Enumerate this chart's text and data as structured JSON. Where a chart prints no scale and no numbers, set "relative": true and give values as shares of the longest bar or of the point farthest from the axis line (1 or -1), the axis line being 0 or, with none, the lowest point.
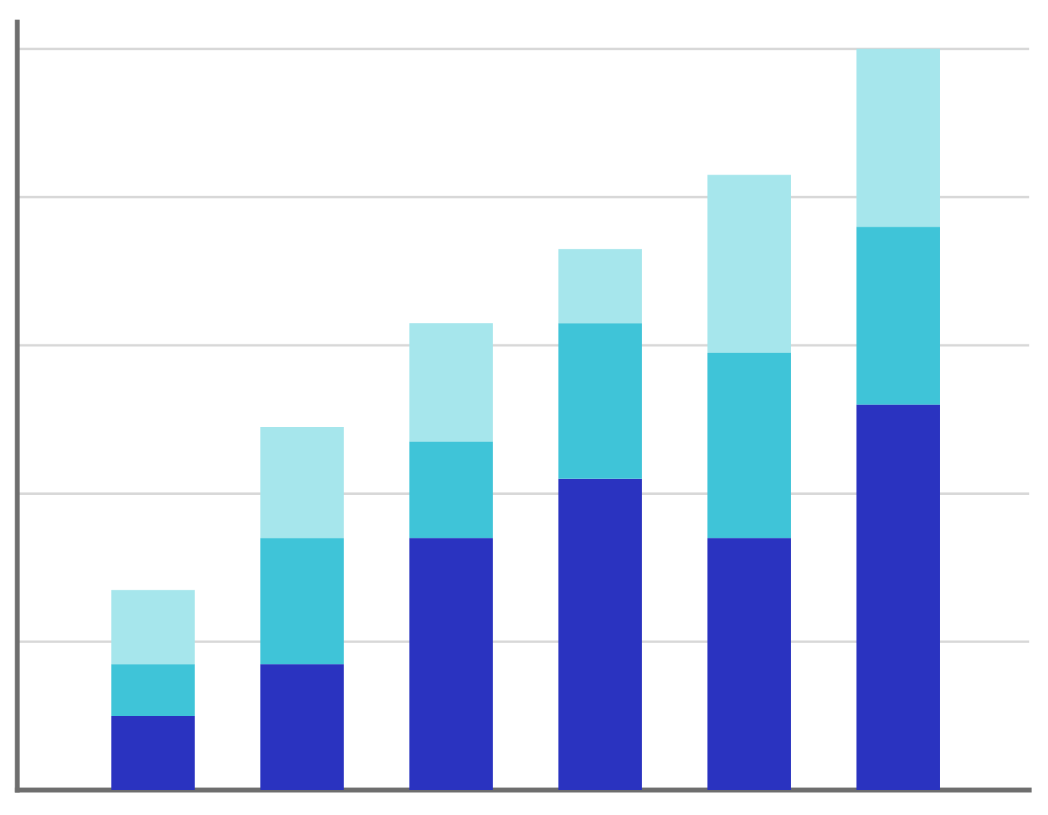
{
  "chart_data": {
    "type": "bar",
    "relative": true,
    "stacked": true,
    "grid": "y",
    "categories": [
      null,
      null,
      null,
      null,
      null,
      null
    ],
    "series": [
      {
        "color": "#2a33c0",
        "values": [
          0.1,
          0.17,
          0.34,
          0.42,
          0.34,
          0.52
        ]
      },
      {
        "color": "#3fc4d8",
        "values": [
          0.07,
          0.17,
          0.13,
          0.21,
          0.25,
          0.24
        ]
      },
      {
        "color": "#a6e6ec",
        "values": [
          0.1,
          0.15,
          0.16,
          0.1,
          0.24,
          0.24
        ]
      }
    ]
  }
}
